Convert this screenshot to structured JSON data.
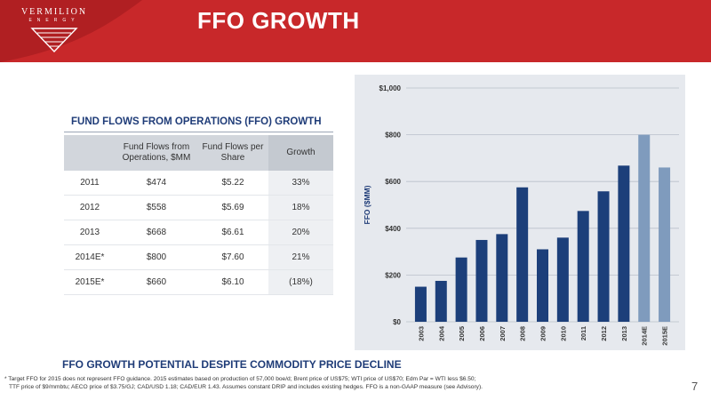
{
  "header": {
    "logo_name": "VERMILION",
    "logo_sub": "ENERGY",
    "title": "FFO GROWTH"
  },
  "table": {
    "title": "FUND FLOWS FROM OPERATIONS (FFO) GROWTH",
    "columns": [
      "",
      "Fund Flows from Operations, $MM",
      "Fund Flows per Share",
      "Growth"
    ],
    "rows": [
      [
        "2011",
        "$474",
        "$5.22",
        "33%"
      ],
      [
        "2012",
        "$558",
        "$5.69",
        "18%"
      ],
      [
        "2013",
        "$668",
        "$6.61",
        "20%"
      ],
      [
        "2014E*",
        "$800",
        "$7.60",
        "21%"
      ],
      [
        "2015E*",
        "$660",
        "$6.10",
        "(18%)"
      ]
    ]
  },
  "chart_data": {
    "type": "bar",
    "categories": [
      "2003",
      "2004",
      "2005",
      "2006",
      "2007",
      "2008",
      "2009",
      "2010",
      "2011",
      "2012",
      "2013",
      "2014E",
      "2015E"
    ],
    "values": [
      150,
      175,
      275,
      350,
      375,
      575,
      310,
      360,
      474,
      558,
      668,
      800,
      660
    ],
    "estimate_categories": [
      "2014E",
      "2015E"
    ],
    "ylabel": "FFO ($MM)",
    "ylim": [
      0,
      1000
    ],
    "yticks": [
      0,
      200,
      400,
      600,
      800,
      1000
    ],
    "ytick_labels": [
      "$0",
      "$200",
      "$400",
      "$600",
      "$800",
      "$1,000"
    ],
    "grid": true,
    "colors": {
      "actual": "#1c3f7a",
      "estimate": "#7f9bbd",
      "panel": "#e6e9ee"
    }
  },
  "footer": {
    "heading": "FFO GROWTH POTENTIAL DESPITE COMMODITY PRICE DECLINE",
    "note1": "* Target FFO for 2015 does not represent FFO guidance.  2015 estimates based on production of 57,000 boe/d; Brent price of US$75; WTI price of US$70; Edm Par = WTI less $6.50;",
    "note2": "TTF price of $9/mmbtu; AECO price of $3.75/GJ; CAD/USD 1.18; CAD/EUR 1.43.  Assumes constant DRIP and includes existing hedges. FFO is a non-GAAP measure (see Advisory).",
    "page": "7"
  }
}
